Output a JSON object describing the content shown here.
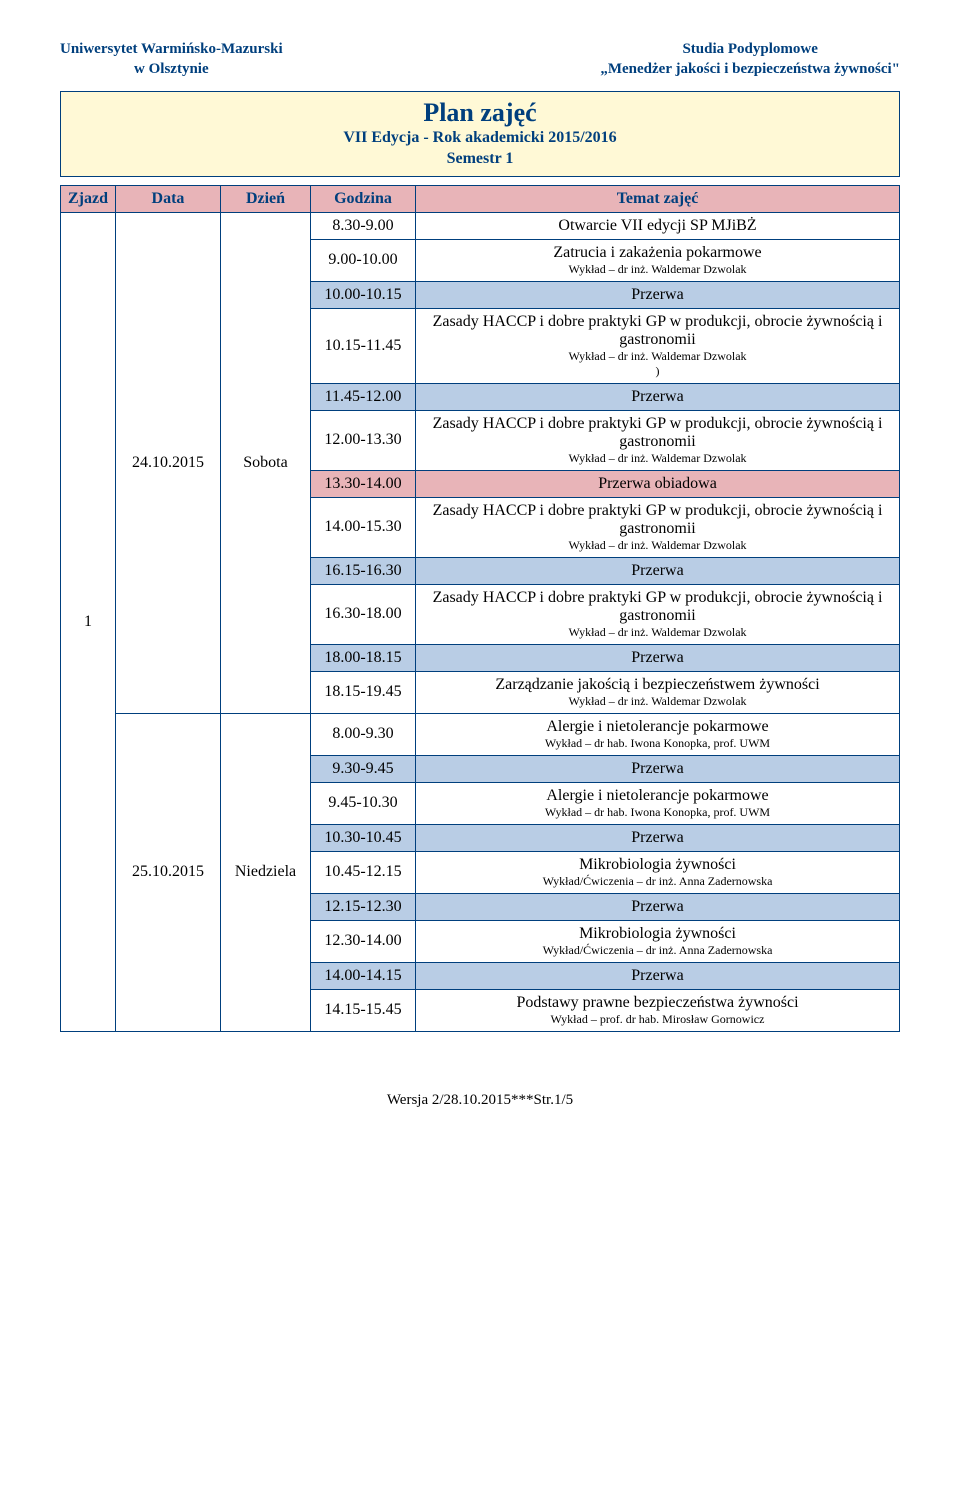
{
  "header": {
    "leftLine1": "Uniwersytet Warmińsko-Mazurski",
    "leftLine2": "w Olsztynie",
    "rightLine1": "Studia Podyplomowe",
    "rightLine2": "„Menedżer jakości i bezpieczeństwa żywności\""
  },
  "titleBox": {
    "main": "Plan zajęć",
    "sub1": "VII Edycja - Rok akademicki 2015/2016",
    "sub2": "Semestr 1"
  },
  "columns": [
    "Zjazd",
    "Data",
    "Dzień",
    "Godzina",
    "Temat zajęć"
  ],
  "zjazd": "1",
  "days": [
    {
      "date": "24.10.2015",
      "day": "Sobota",
      "rows": [
        {
          "time": "8.30-9.00",
          "type": "normal",
          "title": "Otwarcie VII edycji SP MJiBŻ",
          "lecturer": ""
        },
        {
          "time": "9.00-10.00",
          "type": "normal",
          "title": "Zatrucia i zakażenia pokarmowe",
          "lecturer": "Wykład – dr inż. Waldemar Dzwolak"
        },
        {
          "time": "10.00-10.15",
          "type": "break",
          "title": "Przerwa",
          "lecturer": ""
        },
        {
          "time": "10.15-11.45",
          "type": "normal",
          "title": "Zasady HACCP i dobre praktyki GP w produkcji, obrocie żywnością i gastronomii",
          "lecturer": "Wykład – dr inż. Waldemar Dzwolak",
          "extra": ")"
        },
        {
          "time": "11.45-12.00",
          "type": "break",
          "title": "Przerwa",
          "lecturer": ""
        },
        {
          "time": "12.00-13.30",
          "type": "normal",
          "title": "Zasady HACCP i dobre praktyki GP w produkcji, obrocie żywnością i gastronomii",
          "lecturer": "Wykład – dr inż. Waldemar Dzwolak"
        },
        {
          "time": "13.30-14.00",
          "type": "lunch",
          "title": "Przerwa obiadowa",
          "lecturer": ""
        },
        {
          "time": "14.00-15.30",
          "type": "normal",
          "title": "Zasady HACCP i dobre praktyki GP w produkcji, obrocie żywnością i gastronomii",
          "lecturer": "Wykład – dr inż. Waldemar Dzwolak"
        },
        {
          "time": "16.15-16.30",
          "type": "break",
          "title": "Przerwa",
          "lecturer": ""
        },
        {
          "time": "16.30-18.00",
          "type": "normal",
          "title": "Zasady HACCP i dobre praktyki GP w produkcji, obrocie żywnością i gastronomii",
          "lecturer": "Wykład  – dr inż. Waldemar Dzwolak"
        },
        {
          "time": "18.00-18.15",
          "type": "break",
          "title": "Przerwa",
          "lecturer": ""
        },
        {
          "time": "18.15-19.45",
          "type": "normal",
          "title": "Zarządzanie jakością i bezpieczeństwem żywności",
          "lecturer": "Wykład – dr inż. Waldemar Dzwolak"
        }
      ]
    },
    {
      "date": "25.10.2015",
      "day": "Niedziela",
      "rows": [
        {
          "time": "8.00-9.30",
          "type": "normal",
          "title": "Alergie i nietolerancje pokarmowe",
          "lecturer": "Wykład – dr hab. Iwona Konopka, prof. UWM"
        },
        {
          "time": "9.30-9.45",
          "type": "break",
          "title": "Przerwa",
          "lecturer": ""
        },
        {
          "time": "9.45-10.30",
          "type": "normal",
          "title": "Alergie i nietolerancje pokarmowe",
          "lecturer": "Wykład – dr hab. Iwona Konopka, prof. UWM"
        },
        {
          "time": "10.30-10.45",
          "type": "break",
          "title": "Przerwa",
          "lecturer": ""
        },
        {
          "time": "10.45-12.15",
          "type": "normal",
          "title": "Mikrobiologia żywności",
          "lecturer": "Wykład/Ćwiczenia – dr inż. Anna Zadernowska"
        },
        {
          "time": "12.15-12.30",
          "type": "break",
          "title": "Przerwa",
          "lecturer": ""
        },
        {
          "time": "12.30-14.00",
          "type": "normal",
          "title": "Mikrobiologia żywności",
          "lecturer": "Wykład/Ćwiczenia – dr inż. Anna Zadernowska"
        },
        {
          "time": "14.00-14.15",
          "type": "break",
          "title": "Przerwa",
          "lecturer": ""
        },
        {
          "time": "14.15-15.45",
          "type": "normal",
          "title": "Podstawy prawne bezpieczeństwa żywności",
          "lecturer": "Wykład – prof. dr hab. Mirosław Gornowicz"
        }
      ]
    }
  ],
  "footer": "Wersja 2/28.10.2015***Str.1/5",
  "colors": {
    "headerText": "#003f7d",
    "titleBg": "#fff9d6",
    "thBg": "#e8b4b8",
    "breakBg": "#b9cde5",
    "lunchBg": "#e8b4b8",
    "border": "#003f7d"
  }
}
